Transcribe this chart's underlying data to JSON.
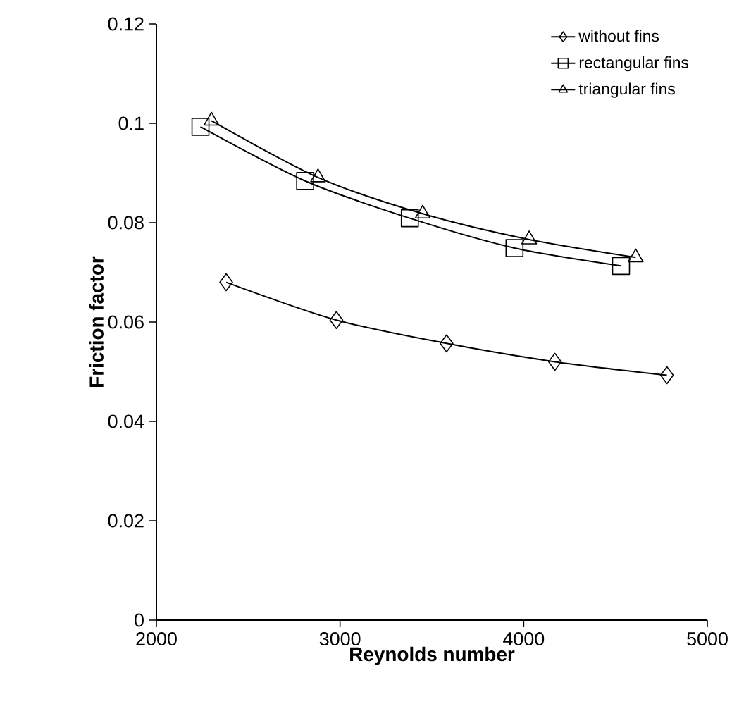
{
  "chart_data": {
    "type": "line",
    "xlabel": "Reynolds number",
    "ylabel": "Friction factor",
    "xlim": [
      2000,
      5000
    ],
    "xticks": [
      2000,
      3000,
      4000,
      5000
    ],
    "ylim": [
      0,
      0.12
    ],
    "yticks": [
      0,
      0.02,
      0.04,
      0.06,
      0.08,
      0.1,
      0.12
    ],
    "grid": false,
    "legend": "top right",
    "line_style": "solid",
    "series": [
      {
        "name": "without fins",
        "color": "#000000",
        "marker": "diamond",
        "x": [
          2380,
          2980,
          3580,
          4170,
          4780
        ],
        "values": [
          0.068,
          0.0604,
          0.0557,
          0.052,
          0.0493
        ]
      },
      {
        "name": "rectangular fins",
        "color": "#000000",
        "marker": "square",
        "x": [
          2240,
          2810,
          3380,
          3950,
          4530
        ],
        "values": [
          0.0993,
          0.0884,
          0.0809,
          0.0749,
          0.0713
        ]
      },
      {
        "name": "triangular fins",
        "color": "#000000",
        "marker": "triangle",
        "x": [
          2300,
          2880,
          3450,
          4030,
          4610
        ],
        "values": [
          0.1005,
          0.0891,
          0.0818,
          0.0766,
          0.073
        ]
      }
    ]
  }
}
